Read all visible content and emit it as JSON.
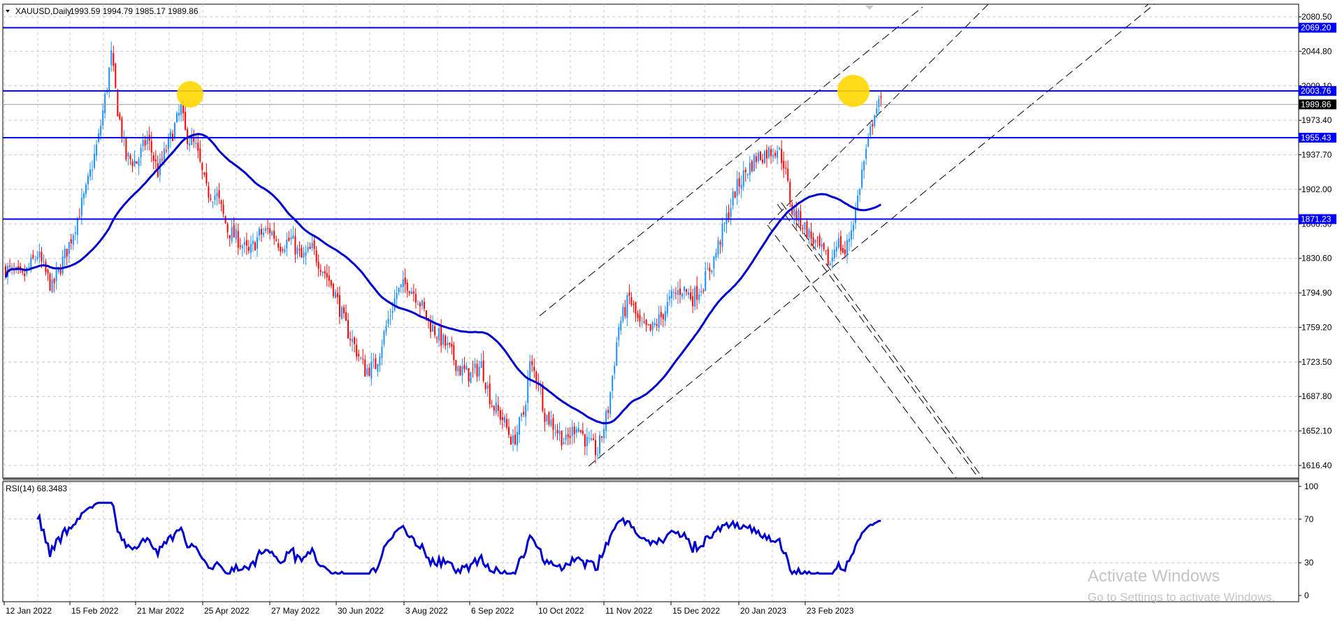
{
  "header": {
    "symbol": "XAUUSD,Daily",
    "ohlc": "1993.59 1994.79 1985.17 1989.86"
  },
  "rsi_header": "RSI(14) 68.3483",
  "watermark": {
    "title": "Activate Windows",
    "subtitle": "Go to Settings to activate Windows."
  },
  "colors": {
    "bull": "#1e90ff",
    "bear": "#ff0000",
    "ma": "#0000cd",
    "hline": "#0000ff",
    "grid": "#c8c8c8",
    "highlight": "#ffd700"
  },
  "chart_data": [
    {
      "type": "candlestick",
      "title": "XAUUSD,Daily",
      "x_ticks": [
        "12 Jan 2022",
        "15 Feb 2022",
        "21 Mar 2022",
        "25 Apr 2022",
        "27 May 2022",
        "30 Jun 2022",
        "3 Aug 2022",
        "6 Sep 2022",
        "10 Oct 2022",
        "11 Nov 2022",
        "15 Dec 2022",
        "20 Jan 2023",
        "23 Feb 2023"
      ],
      "y_ticks": [
        2080.5,
        2044.8,
        2009.1,
        1973.4,
        1937.7,
        1902.0,
        1866.3,
        1830.6,
        1794.9,
        1759.2,
        1723.5,
        1687.8,
        1652.1,
        1616.4
      ],
      "ylim": [
        1606,
        2090
      ],
      "current_price": 1989.86,
      "horizontal_levels": [
        2069.2,
        2003.76,
        1955.43,
        1871.23
      ],
      "price_path": [
        [
          0,
          1820
        ],
        [
          8,
          1810
        ],
        [
          15,
          1835
        ],
        [
          22,
          1800
        ],
        [
          30,
          1845
        ],
        [
          38,
          1900
        ],
        [
          44,
          1955
        ],
        [
          48,
          2010
        ],
        [
          50,
          2040
        ],
        [
          53,
          1985
        ],
        [
          57,
          1935
        ],
        [
          62,
          1930
        ],
        [
          67,
          1955
        ],
        [
          72,
          1920
        ],
        [
          78,
          1955
        ],
        [
          83,
          1985
        ],
        [
          85,
          1960
        ],
        [
          90,
          1945
        ],
        [
          95,
          1900
        ],
        [
          100,
          1895
        ],
        [
          105,
          1860
        ],
        [
          110,
          1850
        ],
        [
          115,
          1835
        ],
        [
          120,
          1855
        ],
        [
          125,
          1860
        ],
        [
          130,
          1845
        ],
        [
          135,
          1850
        ],
        [
          140,
          1830
        ],
        [
          145,
          1840
        ],
        [
          150,
          1820
        ],
        [
          155,
          1800
        ],
        [
          160,
          1765
        ],
        [
          165,
          1740
        ],
        [
          170,
          1715
        ],
        [
          175,
          1720
        ],
        [
          180,
          1760
        ],
        [
          185,
          1795
        ],
        [
          190,
          1805
        ],
        [
          195,
          1790
        ],
        [
          200,
          1765
        ],
        [
          205,
          1750
        ],
        [
          210,
          1735
        ],
        [
          215,
          1715
        ],
        [
          220,
          1710
        ],
        [
          225,
          1720
        ],
        [
          230,
          1680
        ],
        [
          235,
          1665
        ],
        [
          240,
          1640
        ],
        [
          245,
          1670
        ],
        [
          248,
          1720
        ],
        [
          252,
          1705
        ],
        [
          255,
          1670
        ],
        [
          260,
          1655
        ],
        [
          265,
          1640
        ],
        [
          270,
          1660
        ],
        [
          275,
          1640
        ],
        [
          280,
          1630
        ],
        [
          285,
          1675
        ],
        [
          290,
          1760
        ],
        [
          295,
          1790
        ],
        [
          300,
          1760
        ],
        [
          305,
          1755
        ],
        [
          310,
          1770
        ],
        [
          315,
          1790
        ],
        [
          320,
          1800
        ],
        [
          325,
          1790
        ],
        [
          330,
          1805
        ],
        [
          335,
          1830
        ],
        [
          340,
          1865
        ],
        [
          345,
          1900
        ],
        [
          350,
          1920
        ],
        [
          355,
          1935
        ],
        [
          360,
          1940
        ],
        [
          365,
          1945
        ],
        [
          368,
          1930
        ],
        [
          372,
          1880
        ],
        [
          376,
          1870
        ],
        [
          380,
          1855
        ],
        [
          385,
          1840
        ],
        [
          390,
          1825
        ],
        [
          393,
          1850
        ],
        [
          397,
          1835
        ],
        [
          402,
          1880
        ],
        [
          405,
          1920
        ],
        [
          408,
          1950
        ],
        [
          411,
          1985
        ],
        [
          414,
          1990
        ]
      ]
    },
    {
      "type": "line",
      "title": "RSI(14) 68.3483",
      "y_ticks": [
        100,
        70,
        30,
        0
      ],
      "ylim": [
        0,
        100
      ],
      "current_value": 68.3483
    }
  ]
}
